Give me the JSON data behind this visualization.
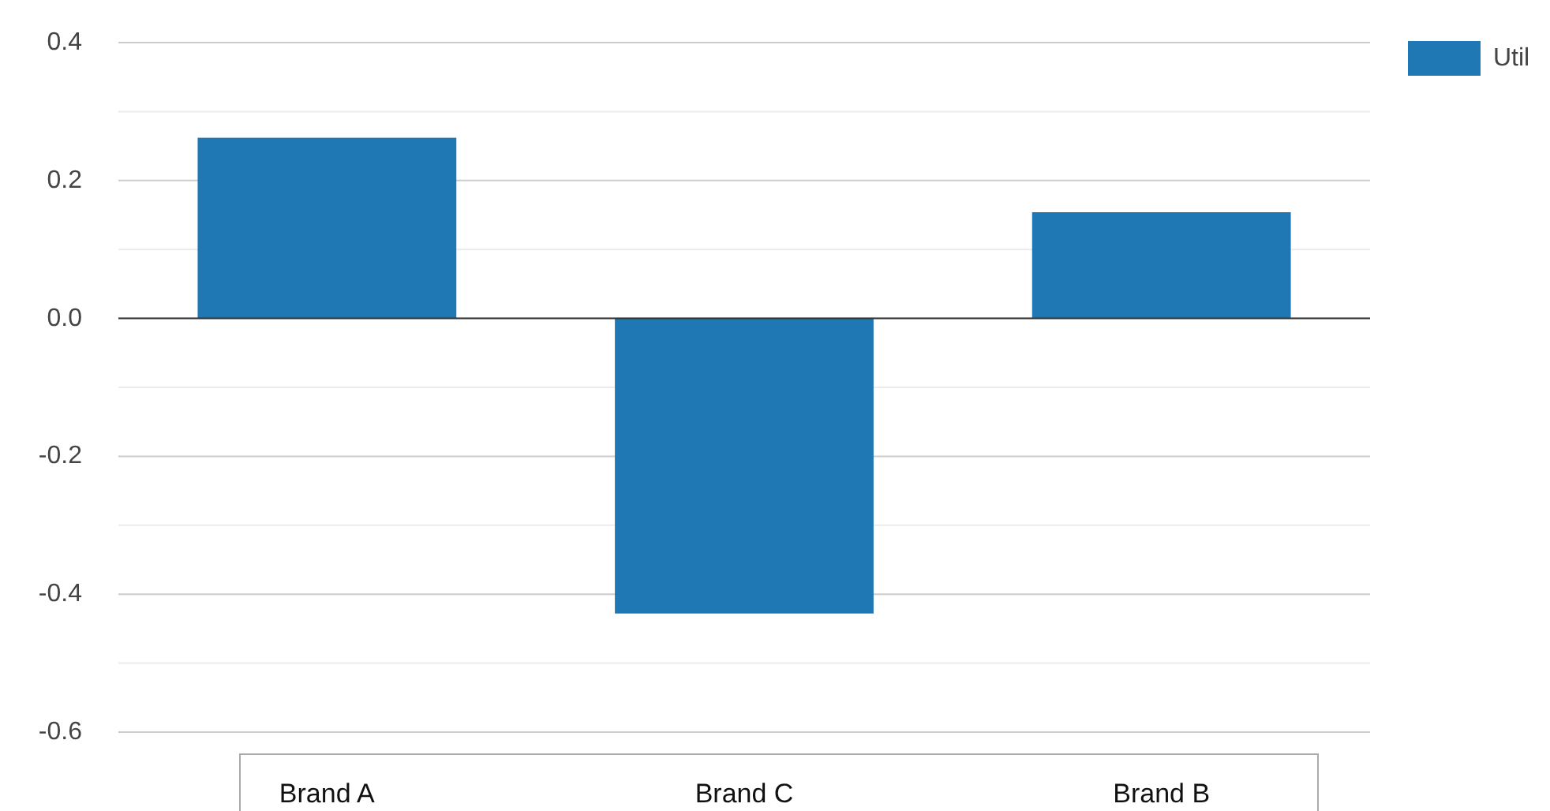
{
  "chart_data": {
    "type": "bar",
    "categories": [
      "Brand A",
      "Brand C",
      "Brand B"
    ],
    "series": [
      {
        "name": "Util",
        "color": "#1f77b4",
        "values": [
          0.262,
          -0.428,
          0.154
        ]
      }
    ],
    "ylim": [
      -0.6,
      0.4
    ],
    "yticks": [
      0.4,
      {
        "value": 0.3,
        "label": null
      },
      0.2,
      {
        "value": 0.1,
        "label": null
      },
      {
        "value": 0,
        "label": "0.0"
      },
      {
        "value": -0.1,
        "label": null
      },
      -0.2,
      {
        "value": -0.3,
        "label": null
      },
      -0.4,
      {
        "value": -0.5,
        "label": null
      },
      -0.6
    ],
    "grid": "y",
    "legend": "top right"
  }
}
